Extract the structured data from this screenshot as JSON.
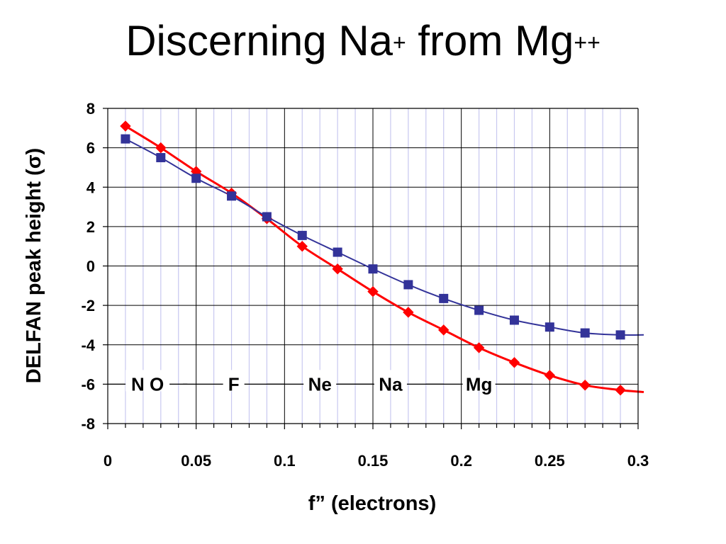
{
  "title": {
    "text": "Discerning Na",
    "sup1": "+",
    "middle": " from Mg",
    "sup2": "++"
  },
  "chart_data": {
    "type": "line",
    "xlabel": "f” (electrons)",
    "ylabel": "DELFAN peak height (σ)",
    "xlim": [
      0,
      0.3
    ],
    "ylim": [
      -8,
      8
    ],
    "x_ticks": [
      "0",
      "0.05",
      "0.1",
      "0.15",
      "0.2",
      "0.25",
      "0.3"
    ],
    "x_tick_values": [
      0,
      0.05,
      0.1,
      0.15,
      0.2,
      0.25,
      0.3
    ],
    "y_ticks": [
      "8",
      "6",
      "4",
      "2",
      "0",
      "-2",
      "-4",
      "-6",
      "-8"
    ],
    "y_tick_values": [
      8,
      6,
      4,
      2,
      0,
      -2,
      -4,
      -6,
      -8
    ],
    "grid": true,
    "series": [
      {
        "color": "#ff0000",
        "marker": "diamond",
        "x": [
          0.01,
          0.03,
          0.05,
          0.07,
          0.09,
          0.11,
          0.13,
          0.15,
          0.17,
          0.19,
          0.21,
          0.23,
          0.25,
          0.27,
          0.29
        ],
        "y": [
          7.1,
          6.0,
          4.8,
          3.7,
          2.4,
          1.0,
          -0.15,
          -1.3,
          -2.35,
          -3.25,
          -4.15,
          -4.9,
          -5.55,
          -6.05,
          -6.3
        ],
        "trend_end": [
          0.3,
          -6.4
        ]
      },
      {
        "color": "#333399",
        "marker": "square",
        "x": [
          0.01,
          0.03,
          0.05,
          0.07,
          0.09,
          0.11,
          0.13,
          0.15,
          0.17,
          0.19,
          0.21,
          0.23,
          0.25,
          0.27,
          0.29
        ],
        "y": [
          6.45,
          5.5,
          4.45,
          3.55,
          2.5,
          1.55,
          0.7,
          -0.15,
          -0.95,
          -1.65,
          -2.25,
          -2.75,
          -3.1,
          -3.4,
          -3.5
        ],
        "trend_end": [
          0.3,
          -3.5
        ]
      }
    ],
    "annotations": [
      {
        "label": "N O",
        "x_start": 0.0,
        "x_end": 0.045,
        "y": -6.0
      },
      {
        "label": "F",
        "x_start": 0.0425,
        "x_end": 0.1,
        "y": -6.0
      },
      {
        "label": "Ne",
        "x_start": 0.09,
        "x_end": 0.15,
        "y": -6.0
      },
      {
        "label": "Na",
        "x_start": 0.13,
        "x_end": 0.19,
        "y": -6.0
      },
      {
        "label": "Mg",
        "x_start": 0.18,
        "x_end": 0.24,
        "y": -6.0
      }
    ]
  }
}
